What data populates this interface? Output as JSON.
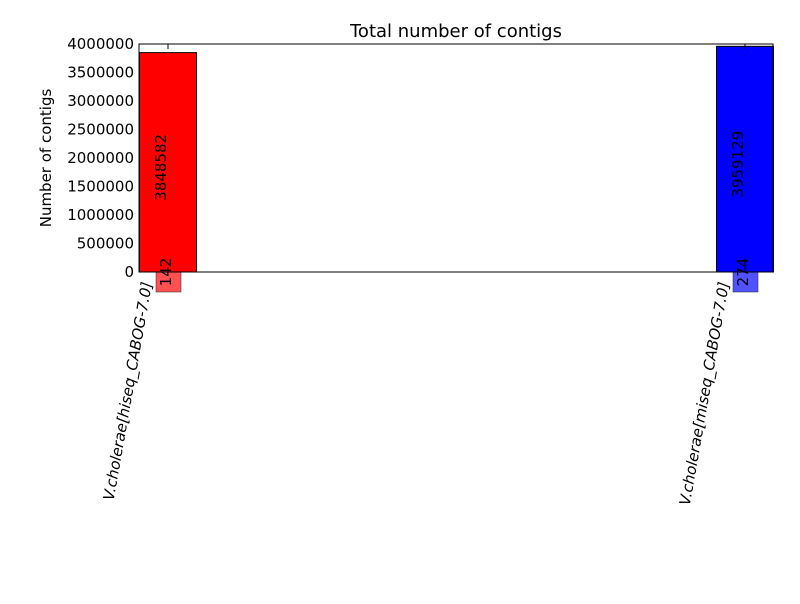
{
  "chart_data": {
    "type": "bar",
    "title": "Total number of contigs",
    "xlabel": "",
    "ylabel": "Number of contigs",
    "ylim": [
      0,
      4000000
    ],
    "yticks": [
      0,
      500000,
      1000000,
      1500000,
      2000000,
      2500000,
      3000000,
      3500000,
      4000000
    ],
    "grid": false,
    "categories": [
      "V.cholerae[hiseq_CABOG-7.0]",
      "V.cholerae[miseq_CABOG-7.0]"
    ],
    "series": [
      {
        "values": [
          3848582,
          3959129
        ],
        "colors": [
          "#ff0000",
          "#0000ff"
        ]
      },
      {
        "values": [
          142,
          274
        ],
        "colors": [
          "#ff3333",
          "#3333ff"
        ]
      }
    ],
    "bar_labels": [
      "3848582",
      "3959129"
    ],
    "small_labels": [
      "142",
      "274"
    ]
  }
}
